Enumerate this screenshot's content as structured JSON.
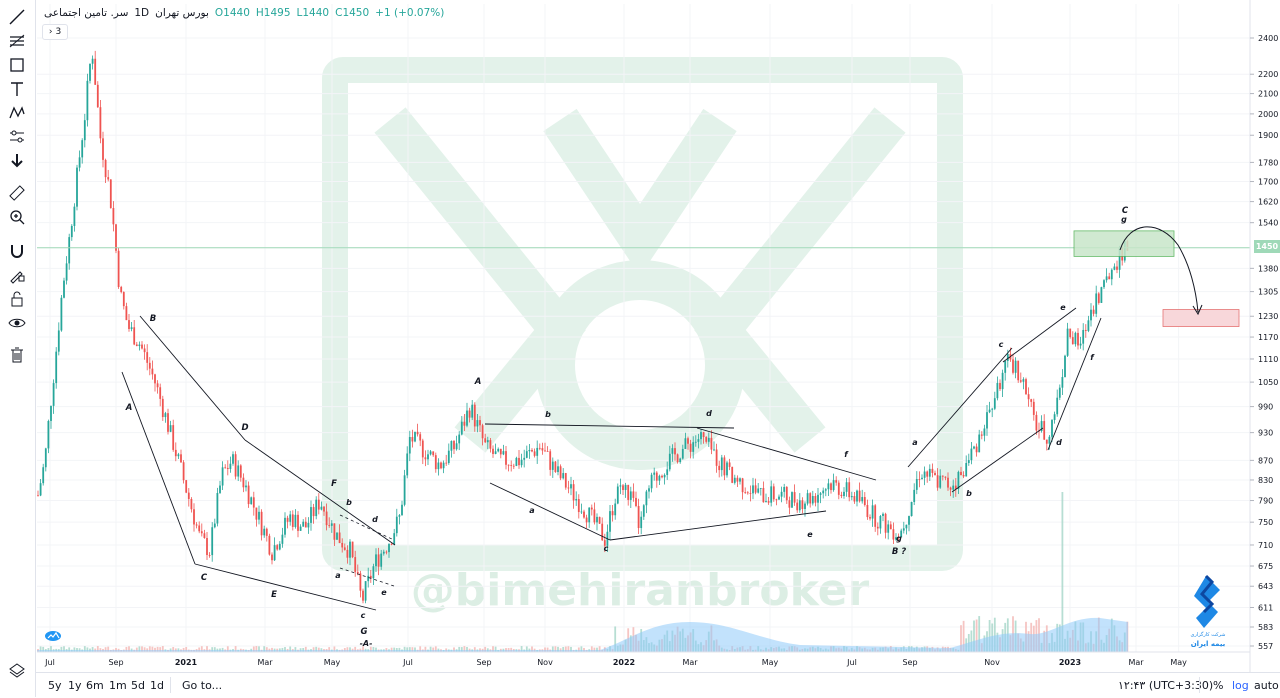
{
  "legend": {
    "symbol": "سر. تامین اجتماعی",
    "interval": "1D",
    "exchange": "بورس تهران",
    "open": "O1440",
    "high": "H1495",
    "low": "L1440",
    "close": "C1450",
    "change": "+1 (+0.07%)",
    "collapse_count": "3"
  },
  "watermark": {
    "handle": "@bimehiranbroker",
    "logo_caption_1": "شرکت کارگزاری",
    "logo_caption_2": "بیمه ایران"
  },
  "colors": {
    "up": "#26a69a",
    "down": "#ef5350",
    "last_price": "#9fd9b8",
    "target_box_green": "#c8e6c9",
    "target_box_red": "#f8d7da",
    "watermark": "#e3f2ea"
  },
  "chart_data": {
    "type": "candlestick",
    "price_scale": "log",
    "y_ticks": [
      2400,
      2200,
      2100,
      2000,
      1900,
      1780,
      1700,
      1620,
      1540,
      1450,
      1380,
      1305,
      1230,
      1170,
      1110,
      1050,
      990,
      930,
      870,
      830,
      790,
      750,
      710,
      675,
      643,
      611,
      583,
      557
    ],
    "x_ticks": [
      "Jul",
      "Sep",
      "2021",
      "Mar",
      "May",
      "Jul",
      "Sep",
      "Nov",
      "2022",
      "Mar",
      "May",
      "Jul",
      "Sep",
      "Nov",
      "2023",
      "Mar",
      "May"
    ],
    "x_ticks_bold": [
      "2021",
      "2022",
      "2023"
    ],
    "last_price": 1450,
    "last_price_label": "1450",
    "waves": [
      {
        "label": "A",
        "price": 1010
      },
      {
        "label": "B",
        "price": 1220
      },
      {
        "label": "C",
        "price": 670
      },
      {
        "label": "D",
        "price": 900
      },
      {
        "label": "E",
        "price": 640
      },
      {
        "label": "F",
        "price": 800
      },
      {
        "label": "G",
        "price": 590
      },
      {
        "label": "A",
        "price": 1000
      },
      {
        "label": "B ?",
        "price": 715
      },
      {
        "label": "C",
        "price": 1560
      }
    ],
    "annotations": [
      "a",
      "b",
      "c",
      "d",
      "e",
      "-A-",
      "a",
      "b",
      "c",
      "d",
      "e",
      "f",
      "g",
      "a",
      "b",
      "c",
      "d",
      "e",
      "f",
      "g"
    ],
    "target_zones": [
      {
        "kind": "resistance",
        "from": 1420,
        "to": 1510
      },
      {
        "kind": "target",
        "from": 1200,
        "to": 1250
      }
    ]
  },
  "bottom_bar": {
    "ranges": [
      "5y",
      "1y",
      "6m",
      "1m",
      "5d",
      "1d"
    ],
    "goto": "Go to...",
    "time": "۱۲:۴۳ (UTC+3:30)",
    "percent": "%",
    "log": "log",
    "auto": "auto"
  }
}
